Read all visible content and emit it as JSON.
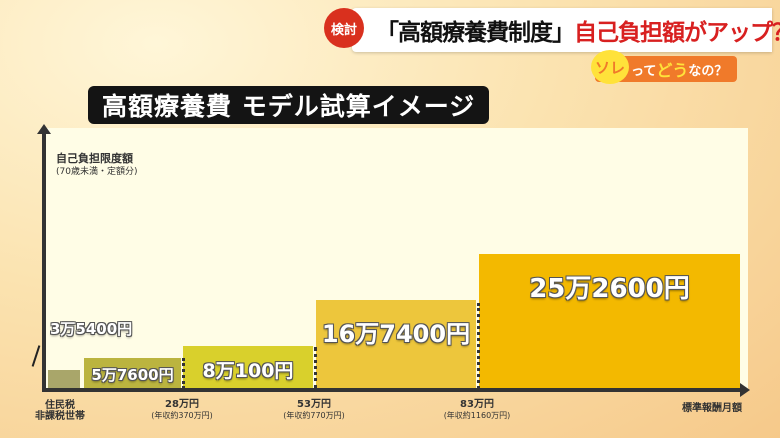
{
  "header": {
    "badge": "検討",
    "headline_black": "「高額療養費制度」",
    "headline_red": "自己負担額がアップ？",
    "sub": {
      "bubble": "ソレ",
      "part1": "って",
      "part2": "どう",
      "part3": "なの？"
    }
  },
  "chart_data": {
    "type": "bar",
    "title": "高額療養費 モデル試算イメージ",
    "ylabel": "自己負担限度額",
    "ylabel_sub": "(70歳未満・定額分)",
    "xlabel": "標準報酬月額",
    "ylim": [
      0,
      490000
    ],
    "values": [
      35400,
      57600,
      80100,
      167400,
      252600
    ],
    "value_labels": [
      "3万5400円",
      "5万7600円",
      "8万100円",
      "16万7400円",
      "25万2600円"
    ],
    "ticks": [
      {
        "label": "住民税",
        "sub": "非課税世帯"
      },
      {
        "label": "28万円",
        "sub": "(年収約370万円)"
      },
      {
        "label": "53万円",
        "sub": "(年収約770万円)"
      },
      {
        "label": "83万円",
        "sub": "(年収約1160万円)"
      }
    ],
    "colors": [
      "#a9a66a",
      "#bbb43f",
      "#d9d02c",
      "#edc63c",
      "#f3b900"
    ],
    "grid": false
  }
}
